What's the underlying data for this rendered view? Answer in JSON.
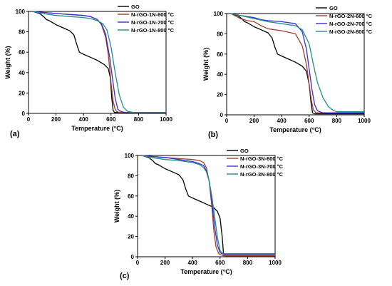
{
  "colors": {
    "GO": "#000000",
    "600": "#a0402a",
    "700": "#3a2fd0",
    "800": "#1f8f8a"
  },
  "chart_data": [
    {
      "type": "line",
      "panel_label": "(a)",
      "xlabel": "Temperature (°C)",
      "ylabel": "Weight (%)",
      "xlim": [
        0,
        1000
      ],
      "ylim": [
        0,
        100
      ],
      "xticks": [
        "0",
        "200",
        "400",
        "600",
        "800",
        "1000"
      ],
      "yticks": [
        "0",
        "20",
        "40",
        "60",
        "80",
        "100"
      ],
      "grid": false,
      "legend_position": "top-right",
      "series": [
        {
          "name": "GO",
          "color_key": "GO",
          "x": [
            30,
            80,
            110,
            130,
            150,
            200,
            250,
            300,
            330,
            350,
            370,
            400,
            450,
            500,
            550,
            580,
            595,
            605,
            615,
            625,
            640,
            700,
            800,
            1000
          ],
          "y": [
            100,
            98,
            95,
            92,
            91,
            87,
            84,
            81,
            77,
            68,
            60,
            58,
            55,
            52,
            48,
            44,
            35,
            15,
            3,
            1,
            1,
            1,
            1,
            1
          ]
        },
        {
          "name": "N-rGO-1N-600 °C",
          "color_key": "600",
          "x": [
            30,
            100,
            200,
            300,
            400,
            450,
            500,
            530,
            560,
            580,
            600,
            615,
            630,
            640,
            660,
            700,
            800,
            1000
          ],
          "y": [
            100,
            99,
            98,
            97,
            96,
            95,
            92,
            87,
            75,
            58,
            30,
            12,
            4,
            2,
            1,
            1,
            1,
            1
          ]
        },
        {
          "name": "N-rGO-1N-700 °C",
          "color_key": "700",
          "x": [
            30,
            100,
            200,
            300,
            400,
            450,
            500,
            530,
            560,
            590,
            610,
            630,
            650,
            670,
            700,
            800,
            1000
          ],
          "y": [
            100,
            99,
            98,
            97,
            96,
            95,
            92,
            88,
            78,
            55,
            35,
            15,
            4,
            2,
            1,
            1,
            1
          ]
        },
        {
          "name": "N-rGO-1N-800 °C",
          "color_key": "800",
          "x": [
            30,
            100,
            200,
            300,
            400,
            450,
            500,
            540,
            570,
            600,
            630,
            660,
            690,
            720,
            760,
            800,
            1000
          ],
          "y": [
            100,
            98,
            96,
            95,
            94,
            93,
            91,
            88,
            82,
            65,
            40,
            18,
            6,
            2,
            1,
            1,
            1
          ]
        }
      ]
    },
    {
      "type": "line",
      "panel_label": "(b)",
      "xlabel": "Temperature (°C)",
      "ylabel": "Weight (%)",
      "xlim": [
        0,
        1000
      ],
      "ylim": [
        0,
        100
      ],
      "xticks": [
        "0",
        "200",
        "400",
        "600",
        "800",
        "1000"
      ],
      "yticks": [
        "0",
        "20",
        "40",
        "60",
        "80",
        "100"
      ],
      "grid": false,
      "legend_position": "top-right",
      "series": [
        {
          "name": "GO",
          "color_key": "GO",
          "x": [
            30,
            80,
            110,
            130,
            150,
            200,
            250,
            300,
            330,
            350,
            370,
            400,
            450,
            500,
            550,
            580,
            600,
            615,
            625,
            640,
            700,
            800,
            1000
          ],
          "y": [
            100,
            98,
            95,
            92,
            91,
            87,
            84,
            81,
            76,
            67,
            60,
            58,
            55,
            52,
            48,
            43,
            30,
            10,
            2,
            1,
            1,
            1,
            1
          ]
        },
        {
          "name": "N-rGO-2N-600 °C",
          "color_key": "600",
          "x": [
            30,
            100,
            150,
            200,
            250,
            300,
            400,
            500,
            550,
            580,
            600,
            615,
            630,
            650,
            700,
            800,
            1000
          ],
          "y": [
            100,
            95,
            93,
            92,
            88,
            85,
            83,
            80,
            68,
            50,
            30,
            15,
            5,
            2,
            2,
            2,
            2
          ]
        },
        {
          "name": "N-rGO-2N-700 °C",
          "color_key": "700",
          "x": [
            30,
            100,
            200,
            250,
            300,
            400,
            500,
            550,
            580,
            600,
            620,
            640,
            660,
            700,
            800,
            1000
          ],
          "y": [
            100,
            98,
            96,
            94,
            93,
            92,
            90,
            82,
            65,
            45,
            25,
            10,
            4,
            2,
            2,
            2
          ]
        },
        {
          "name": "N-rGO-2N-800 °C",
          "color_key": "800",
          "x": [
            30,
            100,
            200,
            300,
            400,
            500,
            550,
            600,
            630,
            660,
            700,
            740,
            780,
            800,
            1000
          ],
          "y": [
            100,
            98,
            95,
            92,
            90,
            88,
            84,
            70,
            50,
            32,
            17,
            8,
            4,
            3,
            3
          ]
        }
      ]
    },
    {
      "type": "line",
      "panel_label": "(c)",
      "xlabel": "Temperature (°C)",
      "ylabel": "Weight (%)",
      "xlim": [
        0,
        1000
      ],
      "ylim": [
        0,
        100
      ],
      "xticks": [
        "0",
        "200",
        "400",
        "600",
        "800",
        "1000"
      ],
      "yticks": [
        "0",
        "20",
        "40",
        "60",
        "80",
        "100"
      ],
      "grid": false,
      "legend_position": "top-right",
      "series": [
        {
          "name": "GO",
          "color_key": "GO",
          "x": [
            30,
            80,
            110,
            130,
            150,
            200,
            250,
            300,
            330,
            350,
            370,
            400,
            450,
            500,
            550,
            580,
            600,
            615,
            625,
            640,
            700,
            800,
            1000
          ],
          "y": [
            100,
            98,
            95,
            92,
            91,
            87,
            84,
            81,
            76,
            67,
            60,
            58,
            55,
            52,
            49,
            45,
            38,
            20,
            3,
            1,
            1,
            1,
            1
          ]
        },
        {
          "name": "N-rGO-3N-600 °C",
          "color_key": "600",
          "x": [
            30,
            100,
            200,
            300,
            400,
            450,
            480,
            500,
            520,
            540,
            555,
            570,
            590,
            620,
            700,
            800,
            1000
          ],
          "y": [
            100,
            99,
            98,
            97,
            96,
            95,
            93,
            88,
            75,
            50,
            25,
            10,
            3,
            1,
            1,
            1,
            1
          ]
        },
        {
          "name": "N-rGO-3N-700 °C",
          "color_key": "700",
          "x": [
            30,
            100,
            200,
            300,
            400,
            450,
            480,
            500,
            520,
            540,
            560,
            580,
            600,
            630,
            700,
            800,
            1000
          ],
          "y": [
            100,
            99,
            98,
            96,
            94,
            92,
            90,
            85,
            75,
            55,
            30,
            12,
            4,
            2,
            2,
            2,
            2
          ]
        },
        {
          "name": "N-rGO-3N-800 °C",
          "color_key": "800",
          "x": [
            30,
            100,
            200,
            300,
            400,
            450,
            480,
            500,
            520,
            540,
            560,
            580,
            600,
            620,
            700,
            800,
            1000
          ],
          "y": [
            100,
            98,
            96,
            95,
            93,
            91,
            88,
            84,
            75,
            60,
            40,
            20,
            6,
            3,
            3,
            3,
            3
          ]
        }
      ]
    }
  ]
}
